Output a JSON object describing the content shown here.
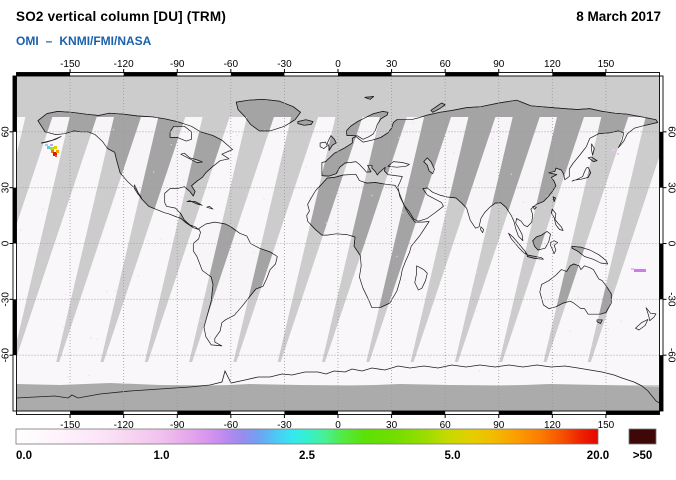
{
  "header": {
    "title": "SO2 vertical column [DU] (TRM)",
    "date": "8 March 2017",
    "instrument": "OMI",
    "separator": "–",
    "agencies": "KNMI/FMI/NASA"
  },
  "map": {
    "lon_ticks": [
      "-150",
      "-120",
      "-90",
      "-60",
      "-30",
      "0",
      "30",
      "60",
      "90",
      "120",
      "150"
    ],
    "lat_ticks": [
      "60",
      "30",
      "0",
      "-30",
      "-60"
    ]
  },
  "colors": {
    "subtitle_blue": "#1b61ab",
    "nodata_ocean": "#cccccc",
    "nodata_land": "#a4a4a4",
    "polar_band": "#ababab",
    "measured_fill": "#fdfafd",
    "coastline": "#1e1e1e",
    "gridline": "#9a9a9a",
    "frame_black": "#000000"
  },
  "colorbar": {
    "tick_labels": [
      "0.0",
      "1.0",
      "2.5",
      "5.0",
      "20.0"
    ],
    "overflow_label": ">50",
    "overflow_color": "#3f0808",
    "gradient_stops": [
      [
        0,
        "#ffffff"
      ],
      [
        0.05,
        "#fef7fc"
      ],
      [
        0.1,
        "#fdeefa"
      ],
      [
        0.15,
        "#fbe3f6"
      ],
      [
        0.2,
        "#f7d3f1"
      ],
      [
        0.25,
        "#f1c1ee"
      ],
      [
        0.29,
        "#e7abec"
      ],
      [
        0.33,
        "#d795ee"
      ],
      [
        0.36,
        "#bb8af0"
      ],
      [
        0.39,
        "#968cee"
      ],
      [
        0.42,
        "#6ba6f2"
      ],
      [
        0.45,
        "#49ccf4"
      ],
      [
        0.475,
        "#35e8ef"
      ],
      [
        0.5,
        "#35f0cf"
      ],
      [
        0.53,
        "#47f097"
      ],
      [
        0.56,
        "#52ea46"
      ],
      [
        0.6,
        "#5ce106"
      ],
      [
        0.65,
        "#72dd00"
      ],
      [
        0.7,
        "#97dd00"
      ],
      [
        0.74,
        "#c4da00"
      ],
      [
        0.78,
        "#e3cf00"
      ],
      [
        0.82,
        "#f3bb00"
      ],
      [
        0.86,
        "#fb9d00"
      ],
      [
        0.9,
        "#fb7d00"
      ],
      [
        0.94,
        "#f64f00"
      ],
      [
        0.97,
        "#ee2200"
      ],
      [
        1,
        "#e20800"
      ]
    ]
  },
  "features": {
    "plume_aleutians": [
      [
        45,
        144,
        3,
        2,
        "#9bd4f0"
      ],
      [
        47,
        146,
        3,
        3,
        "#55cde8"
      ],
      [
        50,
        144,
        3,
        2,
        "#b9a6ef"
      ],
      [
        50,
        147,
        4,
        3,
        "#97e23a"
      ],
      [
        54,
        146,
        3,
        3,
        "#d9d400"
      ],
      [
        51,
        150,
        3,
        3,
        "#f07a00"
      ],
      [
        53,
        152,
        4,
        4,
        "#e01600"
      ],
      [
        56,
        150,
        3,
        3,
        "#fca000"
      ],
      [
        55,
        155,
        2,
        2,
        "#e8552a"
      ],
      [
        15,
        147,
        2,
        5,
        "#f08030"
      ]
    ],
    "speck_vanuatu": [
      [
        631,
        268,
        3,
        2,
        "#f0b8ee"
      ],
      [
        634,
        269,
        12,
        3,
        "#cb7bee"
      ]
    ],
    "specks_pacific": [
      [
        612,
        149,
        3,
        2,
        "#f3c6ef"
      ],
      [
        617,
        153,
        2,
        2,
        "#f3c6ef"
      ]
    ]
  },
  "chart_data": {
    "type": "heatmap",
    "title": "SO2 vertical column [DU] (TRM)",
    "date": "8 March 2017",
    "source": "OMI – KNMI/FMI/NASA",
    "units": "DU",
    "projection": "equirectangular world map, lon -180..180, lat -90..90",
    "lon_gridlines": [
      -150,
      -120,
      -90,
      -60,
      -30,
      0,
      30,
      60,
      90,
      120,
      150
    ],
    "lat_gridlines": [
      60,
      30,
      0,
      -30,
      -60
    ],
    "color_scale_breakpoints": [
      0.0,
      1.0,
      2.5,
      5.0,
      20.0
    ],
    "overflow_threshold": 50,
    "notable_features": [
      "Strong SO2 plume near the Aleutian Islands (~50-54N, 157-165W) with values reaching the red end of the scale (>20 DU)",
      "Small violet SO2 enhancement near Vanuatu (~14S, 166E, ~1-2 DU)",
      "Background SO2 values approximately 0 DU (white) over all measured swaths",
      "Solid gray band poleward of ~68N and ~76S: no data (polar darkness)",
      "About 15 slanted gray stripes: gaps between successive sun-synchronous orbit swaths, tapering and closing toward the south"
    ]
  }
}
